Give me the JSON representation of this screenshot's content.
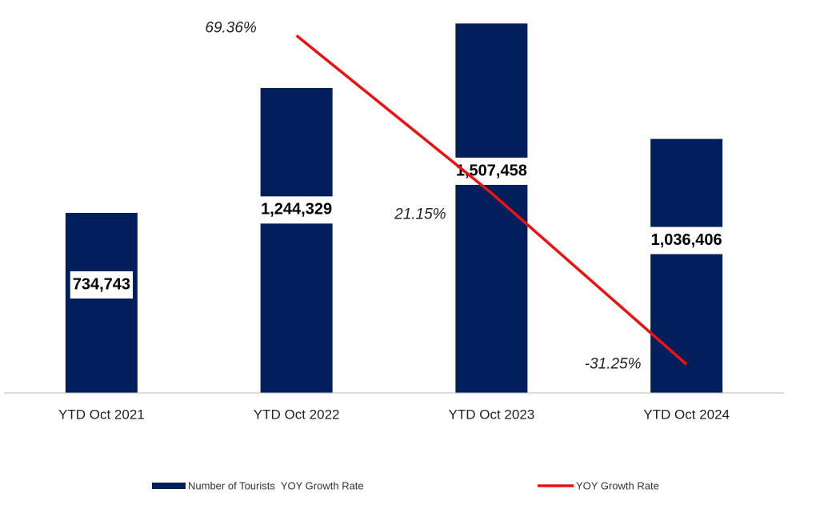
{
  "chart_data": {
    "type": "bar-line",
    "categories": [
      "YTD Oct 2021",
      "YTD Oct 2022",
      "YTD Oct 2023",
      "YTD Oct 2024"
    ],
    "series": [
      {
        "name": "Number of Tourists  YOY Growth Rate",
        "type": "bar",
        "color": "#001f5b",
        "values": [
          734743,
          1244329,
          1507458,
          1036406
        ],
        "value_labels": [
          "734,743",
          "1,244,329",
          "1,507,458",
          "1,036,406"
        ]
      },
      {
        "name": "YOY Growth Rate",
        "type": "line",
        "axis": "y2",
        "color": "#ee1111",
        "values": [
          null,
          69.36,
          21.15,
          -31.25
        ],
        "value_labels": [
          null,
          "69.36%",
          "21.15%",
          "-31.25%"
        ]
      }
    ],
    "ylim": [
      0,
      1600000
    ],
    "y2lim": [
      -40,
      80
    ],
    "legend": "bottom"
  }
}
